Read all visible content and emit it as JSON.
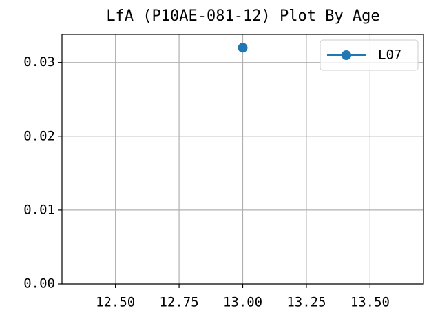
{
  "chart_data": {
    "type": "line",
    "title": "LfA (P10AE-081-12) Plot By Age",
    "x": [
      13.0
    ],
    "series": [
      {
        "name": "L07",
        "color": "#1f77b4",
        "values": [
          0.032
        ]
      }
    ],
    "xlim": [
      12.29,
      13.71
    ],
    "xticks": [
      {
        "value": 12.5,
        "label": "12.50"
      },
      {
        "value": 12.75,
        "label": "12.75"
      },
      {
        "value": 13.0,
        "label": "13.00"
      },
      {
        "value": 13.25,
        "label": "13.25"
      },
      {
        "value": 13.5,
        "label": "13.50"
      }
    ],
    "ylim": [
      0,
      0.0338
    ],
    "yticks": [
      {
        "value": 0,
        "label": "0.00"
      },
      0.01,
      0.02,
      0.03
    ],
    "grid": true,
    "legend": "upper right"
  }
}
